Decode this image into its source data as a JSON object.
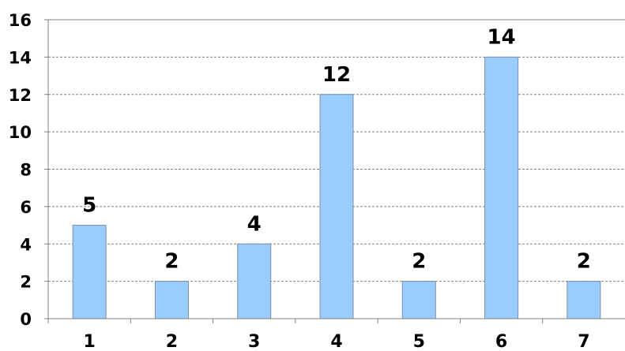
{
  "chart_data": {
    "type": "bar",
    "title": "",
    "xlabel": "",
    "ylabel": "",
    "categories": [
      "1",
      "2",
      "3",
      "4",
      "5",
      "6",
      "7"
    ],
    "values": [
      5,
      2,
      4,
      12,
      2,
      14,
      2
    ],
    "data_labels": [
      "5",
      "2",
      "4",
      "12",
      "2",
      "14",
      "2"
    ],
    "ylim": [
      0,
      16
    ],
    "y_ticks": [
      0,
      2,
      4,
      6,
      8,
      10,
      12,
      14,
      16
    ],
    "y_tick_labels": [
      "0",
      "2",
      "4",
      "6",
      "8",
      "10",
      "12",
      "14",
      "16"
    ],
    "grid": true,
    "grid_style": "dashed",
    "legend": "none",
    "colors": {
      "bar_fill": "#99CCFF",
      "bar_stroke": "#7F8FA6",
      "grid": "#808080",
      "axis": "#808080",
      "text": "#000000"
    }
  }
}
